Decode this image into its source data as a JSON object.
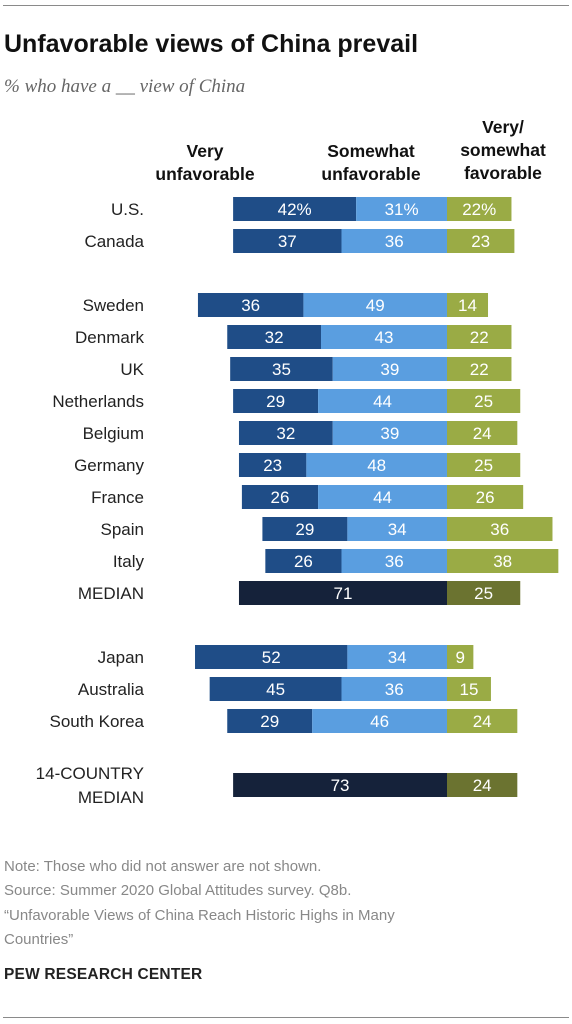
{
  "title": "Unfavorable views of China prevail",
  "subtitle": "% who have a __ view of China",
  "column_headers": {
    "very_unfavorable": "Very\nunfavorable",
    "somewhat_unfavorable": "Somewhat\nunfavorable",
    "favorable": "Very/\nsomewhat\nfavorable"
  },
  "colors": {
    "very_unfavorable": "#1f4d87",
    "somewhat_unfavorable": "#5a9ee0",
    "favorable": "#9aab45",
    "median_unfavorable": "#15223a",
    "median_favorable": "#6b7330"
  },
  "chart_data": {
    "type": "bar",
    "orientation": "horizontal-diverging",
    "series_names": [
      "Very unfavorable",
      "Somewhat unfavorable",
      "Very/somewhat favorable"
    ],
    "rows": [
      {
        "label": "U.S.",
        "very_unfav": 42,
        "somewhat_unfav": 31,
        "fav": 22,
        "display": [
          "42%",
          "31%",
          "22%"
        ]
      },
      {
        "label": "Canada",
        "very_unfav": 37,
        "somewhat_unfav": 36,
        "fav": 23,
        "display": [
          "37",
          "36",
          "23"
        ]
      },
      {
        "label": "Sweden",
        "very_unfav": 36,
        "somewhat_unfav": 49,
        "fav": 14,
        "display": [
          "36",
          "49",
          "14"
        ]
      },
      {
        "label": "Denmark",
        "very_unfav": 32,
        "somewhat_unfav": 43,
        "fav": 22,
        "display": [
          "32",
          "43",
          "22"
        ]
      },
      {
        "label": "UK",
        "very_unfav": 35,
        "somewhat_unfav": 39,
        "fav": 22,
        "display": [
          "35",
          "39",
          "22"
        ]
      },
      {
        "label": "Netherlands",
        "very_unfav": 29,
        "somewhat_unfav": 44,
        "fav": 25,
        "display": [
          "29",
          "44",
          "25"
        ]
      },
      {
        "label": "Belgium",
        "very_unfav": 32,
        "somewhat_unfav": 39,
        "fav": 24,
        "display": [
          "32",
          "39",
          "24"
        ]
      },
      {
        "label": "Germany",
        "very_unfav": 23,
        "somewhat_unfav": 48,
        "fav": 25,
        "display": [
          "23",
          "48",
          "25"
        ]
      },
      {
        "label": "France",
        "very_unfav": 26,
        "somewhat_unfav": 44,
        "fav": 26,
        "display": [
          "26",
          "44",
          "26"
        ]
      },
      {
        "label": "Spain",
        "very_unfav": 29,
        "somewhat_unfav": 34,
        "fav": 36,
        "display": [
          "29",
          "34",
          "36"
        ]
      },
      {
        "label": "Italy",
        "very_unfav": 26,
        "somewhat_unfav": 36,
        "fav": 38,
        "display": [
          "26",
          "36",
          "38"
        ]
      },
      {
        "label": "MEDIAN",
        "median": true,
        "unfav_total": 71,
        "fav": 25,
        "display": [
          "71",
          "25"
        ]
      },
      {
        "label": "Japan",
        "very_unfav": 52,
        "somewhat_unfav": 34,
        "fav": 9,
        "display": [
          "52",
          "34",
          "9"
        ]
      },
      {
        "label": "Australia",
        "very_unfav": 45,
        "somewhat_unfav": 36,
        "fav": 15,
        "display": [
          "45",
          "36",
          "15"
        ]
      },
      {
        "label": "South Korea",
        "very_unfav": 29,
        "somewhat_unfav": 46,
        "fav": 24,
        "display": [
          "29",
          "46",
          "24"
        ]
      },
      {
        "label": "14-COUNTRY\nMEDIAN",
        "median": true,
        "unfav_total": 73,
        "fav": 24,
        "display": [
          "73",
          "24"
        ]
      }
    ]
  },
  "note": "Note: Those who did not answer are not shown.",
  "source": "Source: Summer 2020 Global Attitudes survey. Q8b.",
  "report_line1": "“Unfavorable Views of China Reach Historic Highs in Many",
  "report_line2": "Countries”",
  "brand": "PEW RESEARCH CENTER"
}
